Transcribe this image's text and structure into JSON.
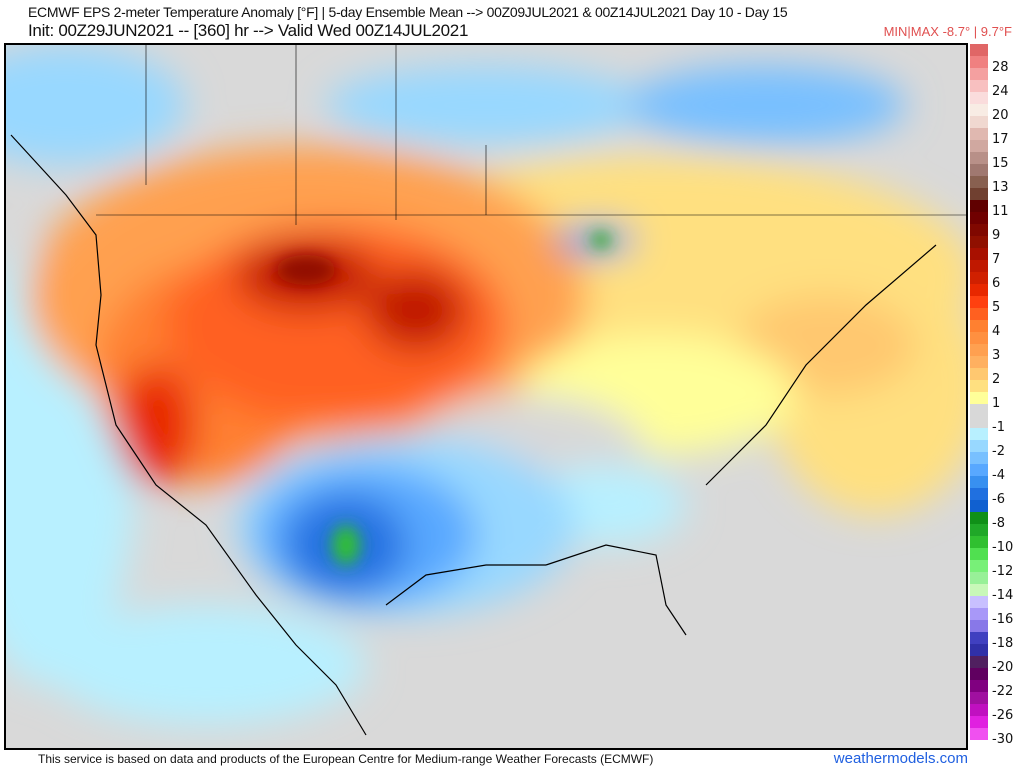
{
  "header": {
    "title": "ECMWF EPS 2-meter Temperature Anomaly [°F] | 5-day Ensemble Mean --> 00Z09JUL2021 & 00Z14JUL2021   Day 10 - Day 15",
    "subtitle": "Init: 00Z29JUN2021 -- [360] hr --> Valid Wed 00Z14JUL2021",
    "minmax": "MIN|MAX -8.7° | 9.7°F"
  },
  "colorbar": {
    "labels": [
      "28",
      "24",
      "20",
      "17",
      "15",
      "13",
      "11",
      "9",
      "7",
      "6",
      "5",
      "4",
      "3",
      "2",
      "1",
      "-1",
      "-2",
      "-4",
      "-6",
      "-8",
      "-10",
      "-12",
      "-14",
      "-16",
      "-18",
      "-20",
      "-22",
      "-26",
      "-30"
    ],
    "colors": [
      "#e06666",
      "#f08080",
      "#f4a0a0",
      "#f8c0c0",
      "#fadcdc",
      "#f8ece4",
      "#f0d8d0",
      "#e0b8b0",
      "#d0a8a0",
      "#b89088",
      "#a07870",
      "#886050",
      "#704030",
      "#600000",
      "#700000",
      "#800800",
      "#901000",
      "#a81000",
      "#c01800",
      "#d02000",
      "#e82800",
      "#ff4010",
      "#ff6020",
      "#ff8030",
      "#ff9040",
      "#ffa050",
      "#ffb060",
      "#ffc870",
      "#ffe080",
      "#ffff99",
      "#d8d8d8",
      "#d8d8d8",
      "#b8f0ff",
      "#98d8ff",
      "#78c0ff",
      "#58a8ff",
      "#3890f0",
      "#2070e0",
      "#1060d0",
      "#109018",
      "#20a828",
      "#30c030",
      "#50e050",
      "#78f078",
      "#98f098",
      "#c8f8b8",
      "#c8c0ff",
      "#a898f8",
      "#8878e8",
      "#4040c0",
      "#3030a8",
      "#502060",
      "#600060",
      "#800080",
      "#a010a0",
      "#c010c0",
      "#e020e0",
      "#f050f0"
    ]
  },
  "footer": {
    "disclaimer": "This service is based on data and products of the European Centre for Medium-range Weather Forecasts (ECMWF)",
    "site": "weathermodels.com"
  }
}
